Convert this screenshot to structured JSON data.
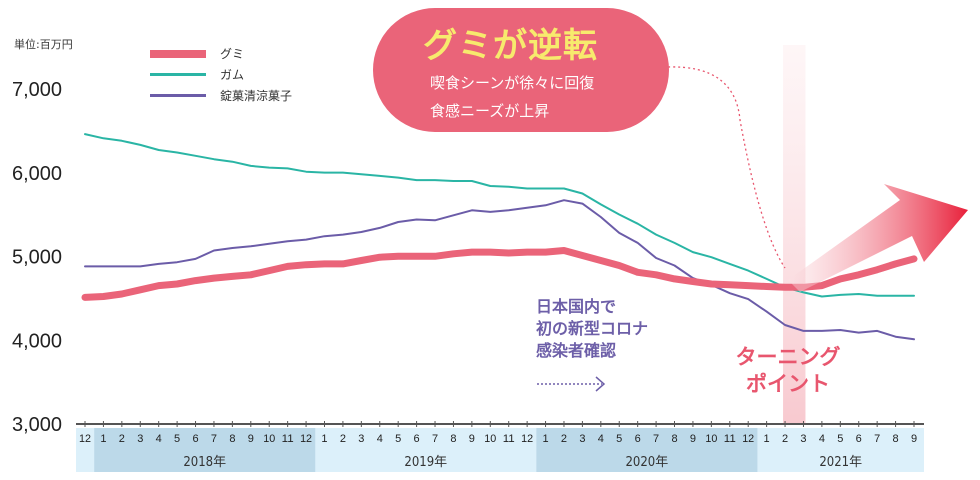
{
  "chart_data": {
    "type": "line",
    "unit_label": "単位:百万円",
    "ylim": [
      3000,
      7000
    ],
    "yticks": [
      "3,000",
      "4,000",
      "5,000",
      "6,000",
      "7,000"
    ],
    "ytick_values": [
      3000,
      4000,
      5000,
      6000,
      7000
    ],
    "x_months": [
      "12",
      "1",
      "2",
      "3",
      "4",
      "5",
      "6",
      "7",
      "8",
      "9",
      "10",
      "11",
      "12",
      "1",
      "2",
      "3",
      "4",
      "5",
      "6",
      "7",
      "8",
      "9",
      "10",
      "11",
      "12",
      "1",
      "2",
      "3",
      "4",
      "5",
      "6",
      "7",
      "8",
      "9",
      "10",
      "11",
      "12",
      "1",
      "2",
      "3",
      "4",
      "5",
      "6",
      "7",
      "8",
      "9"
    ],
    "years": [
      "2018年",
      "2019年",
      "2020年",
      "2021年"
    ],
    "legend_position": "top-left",
    "series": [
      {
        "name": "グミ",
        "color": "#ea6479",
        "values": [
          4500,
          4510,
          4540,
          4590,
          4640,
          4660,
          4700,
          4730,
          4750,
          4770,
          4820,
          4870,
          4890,
          4900,
          4900,
          4940,
          4980,
          4990,
          4990,
          4990,
          5020,
          5040,
          5040,
          5030,
          5040,
          5040,
          5060,
          5000,
          4940,
          4880,
          4800,
          4770,
          4720,
          4690,
          4660,
          4650,
          4640,
          4630,
          4620,
          4620,
          4640,
          4720,
          4770,
          4830,
          4900,
          4960
        ]
      },
      {
        "name": "ガム",
        "color": "#2ab5a5",
        "values": [
          6450,
          6400,
          6370,
          6320,
          6260,
          6230,
          6190,
          6150,
          6120,
          6070,
          6050,
          6040,
          6000,
          5990,
          5990,
          5970,
          5950,
          5930,
          5900,
          5900,
          5890,
          5890,
          5830,
          5820,
          5800,
          5800,
          5800,
          5740,
          5610,
          5490,
          5380,
          5250,
          5150,
          5040,
          4980,
          4900,
          4820,
          4720,
          4620,
          4560,
          4510,
          4530,
          4540,
          4520,
          4520,
          4520
        ]
      },
      {
        "name": "錠菓清涼菓子",
        "color": "#6b5ca8",
        "values": [
          4870,
          4870,
          4870,
          4870,
          4900,
          4920,
          4960,
          5060,
          5090,
          5110,
          5140,
          5170,
          5190,
          5230,
          5250,
          5280,
          5330,
          5400,
          5430,
          5420,
          5480,
          5540,
          5520,
          5540,
          5570,
          5600,
          5660,
          5620,
          5460,
          5270,
          5150,
          4970,
          4880,
          4730,
          4650,
          4550,
          4480,
          4330,
          4170,
          4100,
          4100,
          4110,
          4080,
          4100,
          4030,
          4000
        ]
      }
    ]
  },
  "callout": {
    "title": "グミが逆転",
    "line1": "喫食シーンが徐々に回復",
    "line2": "食感ニーズが上昇"
  },
  "covid_note": {
    "line1": "日本国内で",
    "line2": "初の新型コロナ",
    "line3": "感染者確認"
  },
  "turning_point": {
    "line1": "ターニング",
    "line2": "ポイント"
  },
  "colors": {
    "accent": "#ea6479",
    "title_yellow": "#f7ea6d",
    "band_dark": "#bcd9e9",
    "band_light": "#dcf0fa"
  }
}
